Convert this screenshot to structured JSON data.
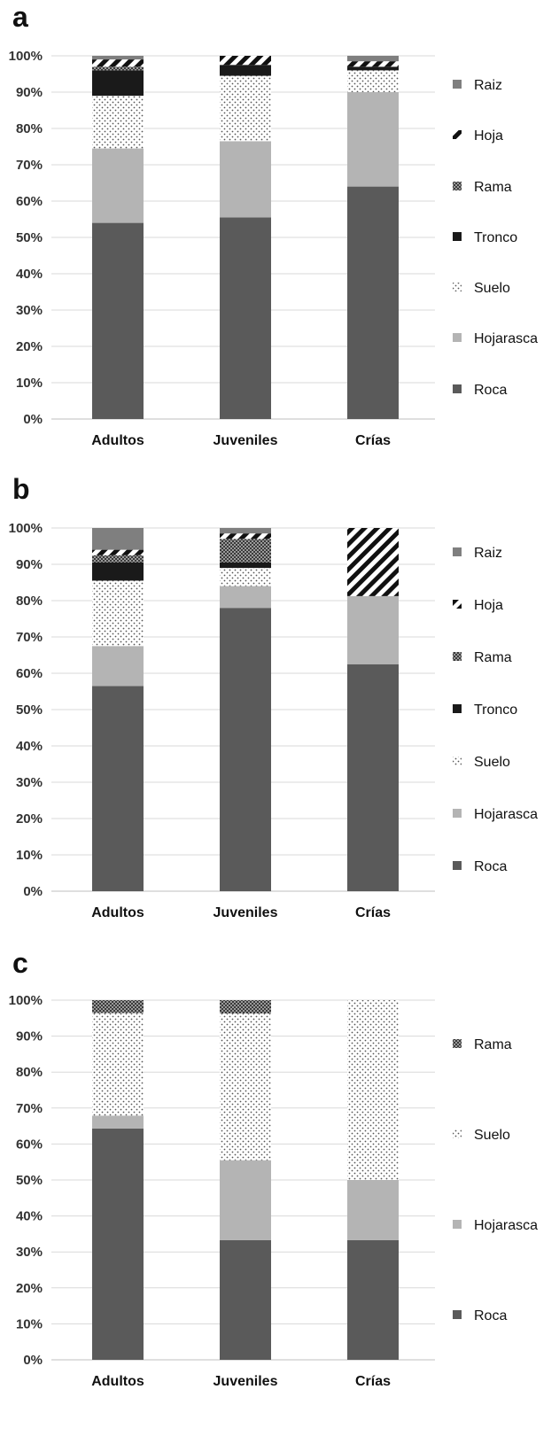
{
  "styles": {
    "Roca": {
      "fill": "#5a5a5a",
      "pattern": "solid"
    },
    "Hojarasca": {
      "fill": "#b4b4b4",
      "pattern": "solid"
    },
    "Suelo": {
      "fill": "#ffffff",
      "pattern": "dots"
    },
    "Tronco": {
      "fill": "#1a1a1a",
      "pattern": "solid"
    },
    "Rama": {
      "fill": "#7a7a7a",
      "pattern": "checker"
    },
    "Hoja": {
      "fill": "#ffffff",
      "pattern": "stripes"
    },
    "Raiz": {
      "fill": "#7f7f7f",
      "pattern": "solid"
    }
  },
  "chart_data": [
    {
      "panel": "a",
      "type": "bar",
      "stacked": "percent",
      "categories": [
        "Adultos",
        "Juveniles",
        "Crías"
      ],
      "y_ticks": [
        "0%",
        "10%",
        "20%",
        "30%",
        "40%",
        "50%",
        "60%",
        "70%",
        "80%",
        "90%",
        "100%"
      ],
      "ylim": [
        0,
        100
      ],
      "grid": true,
      "legend_position": "right",
      "legend": [
        "Raiz",
        "Hoja",
        "Rama",
        "Tronco",
        "Suelo",
        "Hojarasca",
        "Roca"
      ],
      "series": [
        {
          "name": "Roca",
          "values": [
            54,
            55.5,
            64
          ]
        },
        {
          "name": "Hojarasca",
          "values": [
            20.5,
            21,
            26
          ]
        },
        {
          "name": "Suelo",
          "values": [
            14.5,
            18,
            6
          ]
        },
        {
          "name": "Tronco",
          "values": [
            7,
            3,
            1
          ]
        },
        {
          "name": "Rama",
          "values": [
            1,
            0,
            0
          ]
        },
        {
          "name": "Hoja",
          "values": [
            2,
            2.5,
            1.5
          ]
        },
        {
          "name": "Raiz",
          "values": [
            1,
            0,
            1.5
          ]
        }
      ]
    },
    {
      "panel": "b",
      "type": "bar",
      "stacked": "percent",
      "categories": [
        "Adultos",
        "Juveniles",
        "Crías"
      ],
      "y_ticks": [
        "0%",
        "10%",
        "20%",
        "30%",
        "40%",
        "50%",
        "60%",
        "70%",
        "80%",
        "90%",
        "100%"
      ],
      "ylim": [
        0,
        100
      ],
      "grid": true,
      "legend_position": "right",
      "legend": [
        "Raiz",
        "Hoja",
        "Rama",
        "Tronco",
        "Suelo",
        "Hojarasca",
        "Roca"
      ],
      "series": [
        {
          "name": "Roca",
          "values": [
            56.5,
            78,
            62.5
          ]
        },
        {
          "name": "Hojarasca",
          "values": [
            11,
            6,
            18.75
          ]
        },
        {
          "name": "Suelo",
          "values": [
            18,
            5,
            0
          ]
        },
        {
          "name": "Tronco",
          "values": [
            5,
            1.5,
            0
          ]
        },
        {
          "name": "Rama",
          "values": [
            2,
            6.5,
            0
          ]
        },
        {
          "name": "Hoja",
          "values": [
            1.5,
            1.5,
            18.75
          ]
        },
        {
          "name": "Raiz",
          "values": [
            6,
            1.5,
            0
          ]
        }
      ]
    },
    {
      "panel": "c",
      "type": "bar",
      "stacked": "percent",
      "categories": [
        "Adultos",
        "Juveniles",
        "Crías"
      ],
      "y_ticks": [
        "0%",
        "10%",
        "20%",
        "30%",
        "40%",
        "50%",
        "60%",
        "70%",
        "80%",
        "90%",
        "100%"
      ],
      "ylim": [
        0,
        100
      ],
      "grid": true,
      "legend_position": "right",
      "legend": [
        "Rama",
        "Suelo",
        "Hojarasca",
        "Roca"
      ],
      "series": [
        {
          "name": "Roca",
          "values": [
            64.3,
            33.3,
            33.3
          ]
        },
        {
          "name": "Hojarasca",
          "values": [
            3.6,
            22.2,
            16.7
          ]
        },
        {
          "name": "Suelo",
          "values": [
            28.5,
            40.8,
            50
          ]
        },
        {
          "name": "Rama",
          "values": [
            3.6,
            3.7,
            0
          ]
        }
      ]
    }
  ]
}
